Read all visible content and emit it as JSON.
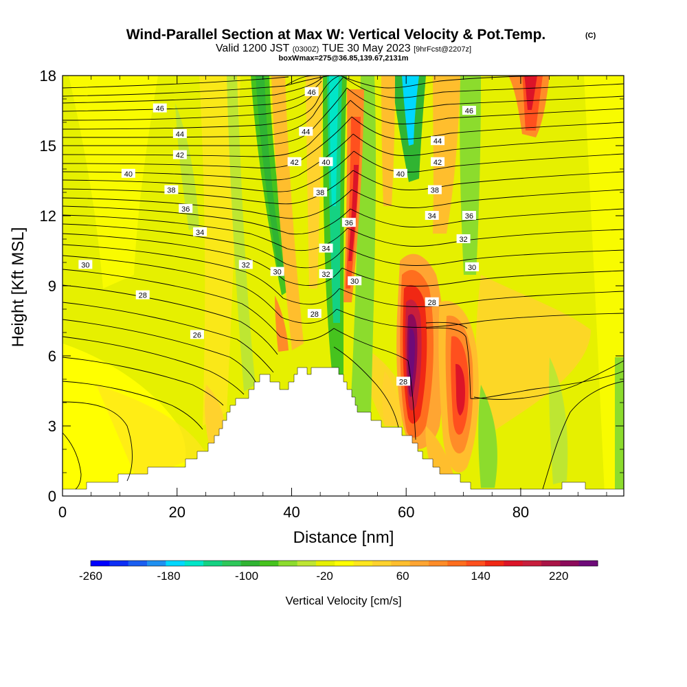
{
  "chart_data": {
    "type": "heatmap",
    "title": "Wind-Parallel Section at Max W: Vertical Velocity & Pot.Temp.",
    "title_units": "(C)",
    "subtitle": {
      "valid": "Valid 1200 JST",
      "utc": "(0300Z)",
      "date": "TUE 30 May 2023",
      "forecast": "[9hrFcst@2207z]"
    },
    "subtitle2": "boxWmax=275@36.85,139.67,2131m",
    "xlabel": "Distance [nm]",
    "ylabel": "Height [Kft MSL]",
    "xlim": [
      0,
      98
    ],
    "ylim": [
      0,
      18
    ],
    "x_ticks": [
      "0",
      "20",
      "40",
      "60",
      "80"
    ],
    "y_ticks": [
      "0",
      "3",
      "6",
      "9",
      "12",
      "15",
      "18"
    ],
    "colorbar": {
      "label": "Vertical Velocity [cm/s]",
      "min": -260,
      "max": 260,
      "tick_labels": [
        "-260",
        "-180",
        "-100",
        "-20",
        "60",
        "140",
        "220"
      ],
      "colors": [
        "#0000ff",
        "#0d2ef5",
        "#1a5ef0",
        "#1f90f0",
        "#00d8ff",
        "#00e6c8",
        "#14d282",
        "#2ec85a",
        "#30b432",
        "#46c31e",
        "#8cdc2d",
        "#bee632",
        "#e6f000",
        "#ffff00",
        "#ffe61e",
        "#ffd22d",
        "#ffbe2d",
        "#ffa532",
        "#ff8c28",
        "#ff6e1e",
        "#ff501e",
        "#f02814",
        "#dc1428",
        "#c81e3c",
        "#aa1446",
        "#8c0a5a",
        "#6e0a78"
      ]
    },
    "pot_temp_contour_labels": [
      {
        "value": "46",
        "x": 17,
        "y": 16.6
      },
      {
        "value": "46",
        "x": 43.5,
        "y": 17.3
      },
      {
        "value": "46",
        "x": 71,
        "y": 16.5
      },
      {
        "value": "44",
        "x": 20.5,
        "y": 15.5
      },
      {
        "value": "44",
        "x": 42.5,
        "y": 15.6
      },
      {
        "value": "44",
        "x": 65.5,
        "y": 15.2
      },
      {
        "value": "42",
        "x": 20.5,
        "y": 14.6
      },
      {
        "value": "42",
        "x": 40.5,
        "y": 14.3
      },
      {
        "value": "42",
        "x": 65.5,
        "y": 14.3
      },
      {
        "value": "40",
        "x": 11.5,
        "y": 13.8
      },
      {
        "value": "40",
        "x": 46,
        "y": 14.3
      },
      {
        "value": "40",
        "x": 59,
        "y": 13.8
      },
      {
        "value": "38",
        "x": 19,
        "y": 13.1
      },
      {
        "value": "38",
        "x": 45,
        "y": 13.0
      },
      {
        "value": "38",
        "x": 65,
        "y": 13.1
      },
      {
        "value": "36",
        "x": 21.5,
        "y": 12.3
      },
      {
        "value": "36",
        "x": 50,
        "y": 11.7
      },
      {
        "value": "36",
        "x": 71,
        "y": 12.0
      },
      {
        "value": "34",
        "x": 24,
        "y": 11.3
      },
      {
        "value": "34",
        "x": 64.5,
        "y": 12.0
      },
      {
        "value": "34",
        "x": 46,
        "y": 10.6
      },
      {
        "value": "32",
        "x": 32,
        "y": 9.9
      },
      {
        "value": "32",
        "x": 46,
        "y": 9.5
      },
      {
        "value": "32",
        "x": 70,
        "y": 11.0
      },
      {
        "value": "30",
        "x": 4,
        "y": 9.9
      },
      {
        "value": "30",
        "x": 37.5,
        "y": 9.6
      },
      {
        "value": "30",
        "x": 51,
        "y": 9.2
      },
      {
        "value": "30",
        "x": 71.5,
        "y": 9.8
      },
      {
        "value": "28",
        "x": 14,
        "y": 8.6
      },
      {
        "value": "28",
        "x": 44,
        "y": 7.8
      },
      {
        "value": "28",
        "x": 64.5,
        "y": 8.3
      },
      {
        "value": "28",
        "x": 59.5,
        "y": 4.9
      },
      {
        "value": "26",
        "x": 23.5,
        "y": 6.9
      }
    ]
  }
}
